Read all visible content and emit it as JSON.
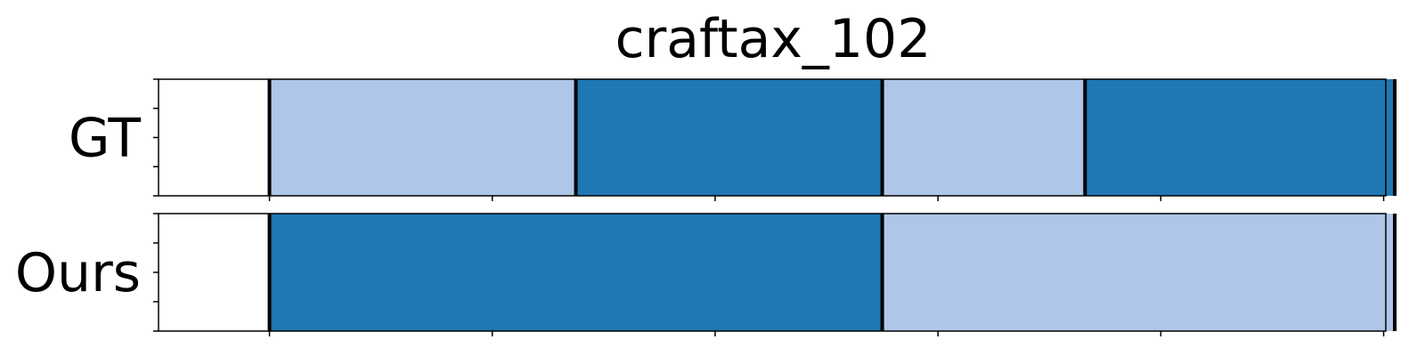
{
  "chart_data": {
    "type": "bar",
    "title": "craftax_102",
    "xlabel": "",
    "ylabel": "",
    "xlim": [
      0,
      1
    ],
    "grid": false,
    "colors": {
      "light": "#aec7e8",
      "dark": "#1f77b4",
      "boundary": "#000000"
    },
    "rows": [
      {
        "label": "GT",
        "segments": [
          {
            "start": 0.05,
            "end": 0.325,
            "color": "light"
          },
          {
            "start": 0.325,
            "end": 0.6,
            "color": "dark"
          },
          {
            "start": 0.6,
            "end": 0.782,
            "color": "light"
          },
          {
            "start": 0.782,
            "end": 1.06,
            "color": "dark"
          }
        ]
      },
      {
        "label": "Ours",
        "segments": [
          {
            "start": 0.05,
            "end": 0.6,
            "color": "dark"
          },
          {
            "start": 0.6,
            "end": 1.06,
            "color": "light"
          }
        ]
      }
    ]
  }
}
